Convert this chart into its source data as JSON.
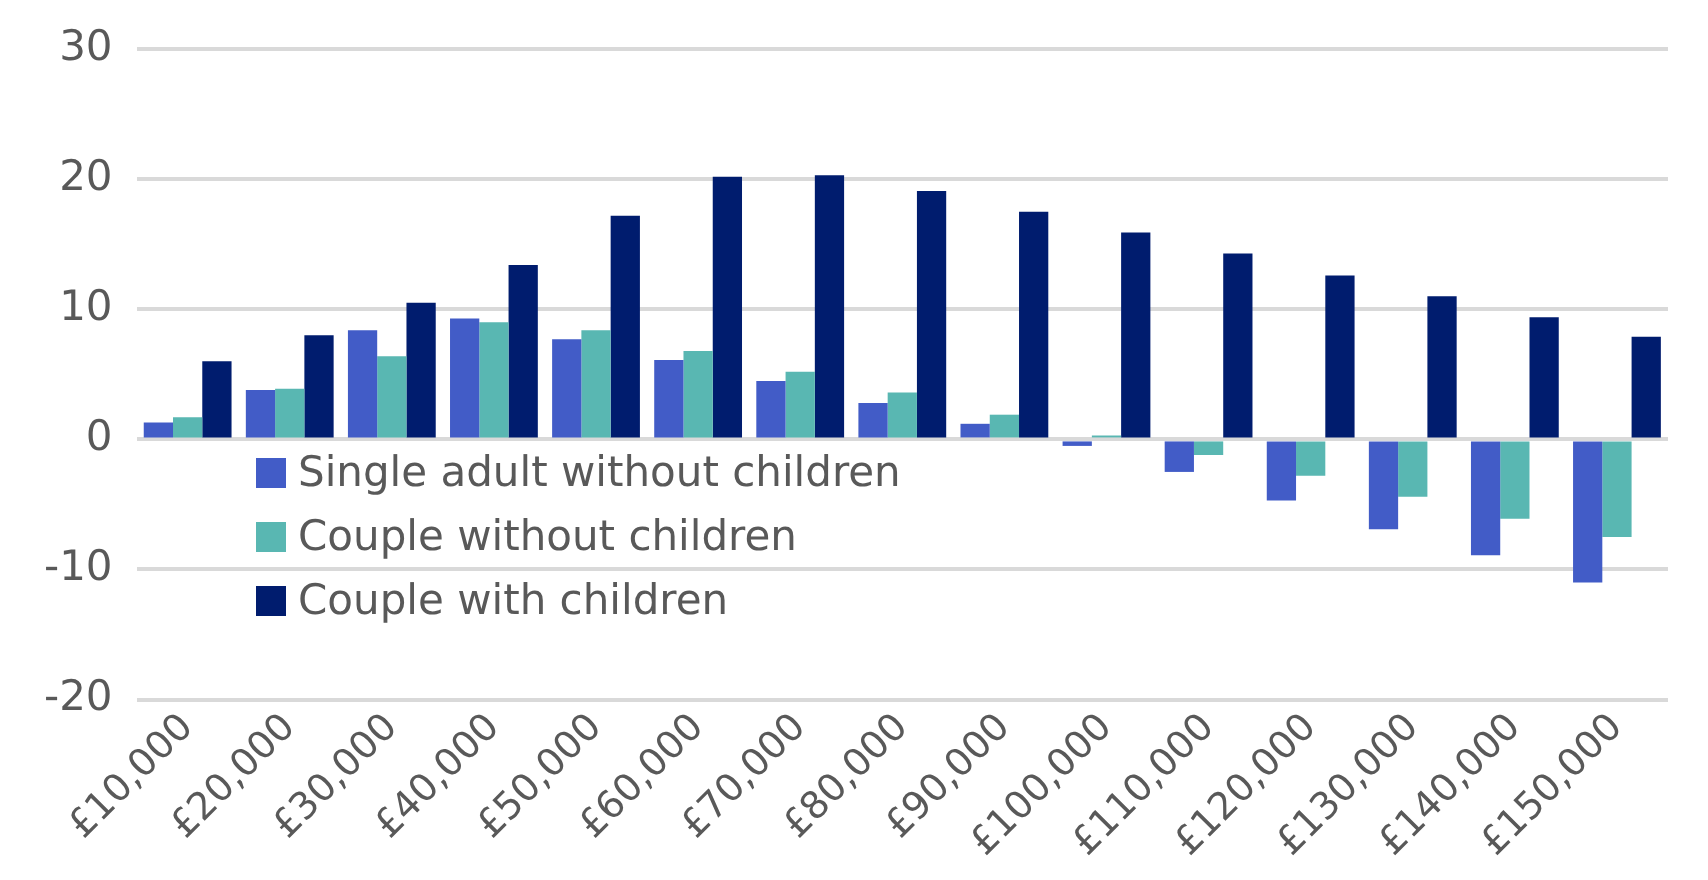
{
  "chart_data": {
    "type": "bar",
    "categories": [
      "£10,000",
      "£20,000",
      "£30,000",
      "£40,000",
      "£50,000",
      "£60,000",
      "£70,000",
      "£80,000",
      "£90,000",
      "£100,000",
      "£110,000",
      "£120,000",
      "£130,000",
      "£140,000",
      "£150,000"
    ],
    "series": [
      {
        "name": "Single adult without children",
        "color": "#425cc7",
        "values": [
          1.3,
          3.8,
          8.4,
          9.3,
          7.7,
          6.1,
          4.5,
          2.8,
          1.2,
          -0.5,
          -2.5,
          -4.7,
          -6.9,
          -8.9,
          -11.0
        ]
      },
      {
        "name": "Couple without children",
        "color": "#59b7b2",
        "values": [
          1.7,
          3.9,
          6.4,
          9.0,
          8.4,
          6.8,
          5.2,
          3.6,
          1.9,
          0.3,
          -1.2,
          -2.8,
          -4.4,
          -6.1,
          -7.5
        ]
      },
      {
        "name": "Couple with children",
        "color": "#001c6e",
        "values": [
          6.0,
          8.0,
          10.5,
          13.4,
          17.2,
          20.2,
          20.3,
          19.1,
          17.5,
          15.9,
          14.3,
          12.6,
          11.0,
          9.4,
          7.9
        ]
      }
    ],
    "ylim": [
      -20,
      30
    ],
    "yticks": [
      -20,
      -10,
      0,
      10,
      20,
      30
    ],
    "grid": "y",
    "legend": "bottom left"
  }
}
